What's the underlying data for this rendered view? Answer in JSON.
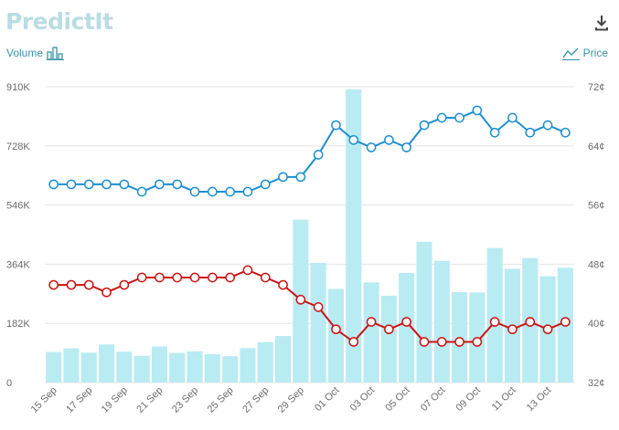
{
  "logo": {
    "text": "PredictIt"
  },
  "icons": {
    "download": "download-icon",
    "volume": "bar-chart-icon",
    "price": "line-chart-icon"
  },
  "legend": {
    "volume_label": "Volume",
    "price_label": "Price"
  },
  "colors": {
    "volume_bar": "#b9ebf3",
    "blue_line": "#1e8fd0",
    "red_line": "#cc1414",
    "grid": "#e6e6e6",
    "accent": "#3a93a6"
  },
  "chart_data": {
    "type": "line",
    "x": [
      "15 Sep",
      "16 Sep",
      "17 Sep",
      "18 Sep",
      "19 Sep",
      "20 Sep",
      "21 Sep",
      "22 Sep",
      "23 Sep",
      "24 Sep",
      "25 Sep",
      "26 Sep",
      "27 Sep",
      "28 Sep",
      "29 Sep",
      "30 Sep",
      "01 Oct",
      "02 Oct",
      "03 Oct",
      "04 Oct",
      "05 Oct",
      "06 Oct",
      "07 Oct",
      "08 Oct",
      "09 Oct",
      "10 Oct",
      "11 Oct",
      "12 Oct",
      "13 Oct",
      "14 Oct"
    ],
    "x_tick_labels": [
      "15 Sep",
      "17 Sep",
      "19 Sep",
      "21 Sep",
      "23 Sep",
      "25 Sep",
      "27 Sep",
      "29 Sep",
      "01 Oct",
      "03 Oct",
      "05 Oct",
      "07 Oct",
      "09 Oct",
      "11 Oct",
      "13 Oct"
    ],
    "left_axis": {
      "ticks": [
        "0",
        "182K",
        "364K",
        "546K",
        "728K",
        "910K"
      ],
      "ylim": [
        0,
        910000
      ]
    },
    "right_axis": {
      "ticks": [
        "32¢",
        "40¢",
        "48¢",
        "56¢",
        "64¢",
        "72¢"
      ],
      "ylim": [
        32,
        72
      ]
    },
    "volume": [
      94000,
      105000,
      92000,
      117000,
      95000,
      82000,
      111000,
      91000,
      96000,
      87000,
      81000,
      106000,
      124000,
      143000,
      501000,
      368000,
      288000,
      902000,
      308000,
      267000,
      337000,
      433000,
      374000,
      278000,
      277000,
      414000,
      350000,
      383000,
      327000,
      353000
    ],
    "series": [
      {
        "axis": "right",
        "color": "#1e8fd0",
        "values": [
          58.8,
          58.8,
          58.8,
          58.8,
          58.8,
          57.8,
          58.8,
          58.8,
          57.8,
          57.8,
          57.8,
          57.8,
          58.8,
          59.8,
          59.8,
          62.8,
          66.8,
          64.8,
          63.8,
          64.8,
          63.8,
          66.8,
          67.8,
          67.8,
          68.8,
          65.8,
          67.8,
          65.8,
          66.8,
          65.8
        ]
      },
      {
        "axis": "right",
        "color": "#cc1414",
        "values": [
          45.2,
          45.2,
          45.2,
          44.2,
          45.2,
          46.2,
          46.2,
          46.2,
          46.2,
          46.2,
          46.2,
          47.2,
          46.2,
          45.2,
          43.2,
          42.2,
          39.2,
          37.5,
          40.2,
          39.2,
          40.2,
          37.5,
          37.5,
          37.5,
          37.5,
          40.2,
          39.2,
          40.2,
          39.2,
          40.2
        ]
      }
    ]
  }
}
